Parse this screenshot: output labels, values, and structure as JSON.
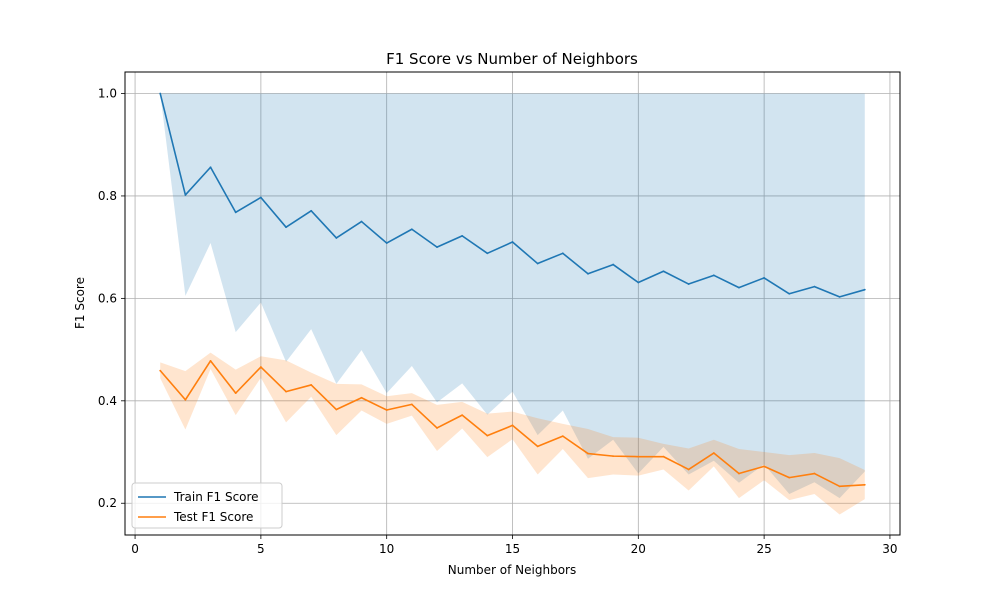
{
  "chart_data": {
    "type": "line",
    "title": "F1 Score vs Number of Neighbors",
    "xlabel": "Number of Neighbors",
    "ylabel": "F1 Score",
    "xlim": [
      -0.4,
      30.4
    ],
    "ylim": [
      0.138,
      1.042
    ],
    "xticks": [
      0,
      5,
      10,
      15,
      20,
      25,
      30
    ],
    "yticks": [
      0.2,
      0.4,
      0.6,
      0.8,
      1.0
    ],
    "grid": true,
    "legend_position": "lower-left",
    "x": [
      1,
      2,
      3,
      4,
      5,
      6,
      7,
      8,
      9,
      10,
      11,
      12,
      13,
      14,
      15,
      16,
      17,
      18,
      19,
      20,
      21,
      22,
      23,
      24,
      25,
      26,
      27,
      28,
      29
    ],
    "series": [
      {
        "name": "Train F1 Score",
        "color": "#1f77b4",
        "values": [
          1.0,
          0.802,
          0.856,
          0.768,
          0.797,
          0.739,
          0.771,
          0.718,
          0.75,
          0.708,
          0.735,
          0.7,
          0.722,
          0.688,
          0.71,
          0.668,
          0.688,
          0.648,
          0.666,
          0.631,
          0.653,
          0.628,
          0.645,
          0.621,
          0.64,
          0.609,
          0.623,
          0.603,
          0.617
        ],
        "band_lower": [
          1.0,
          0.605,
          0.708,
          0.534,
          0.592,
          0.476,
          0.54,
          0.433,
          0.499,
          0.415,
          0.468,
          0.397,
          0.434,
          0.373,
          0.418,
          0.333,
          0.381,
          0.287,
          0.324,
          0.258,
          0.31,
          0.256,
          0.283,
          0.24,
          0.276,
          0.218,
          0.241,
          0.21,
          0.262
        ],
        "band_upper": [
          1.0,
          1.0,
          1.0,
          1.0,
          1.0,
          1.0,
          1.0,
          1.0,
          1.0,
          1.0,
          1.0,
          1.0,
          1.0,
          1.0,
          1.0,
          1.0,
          1.0,
          1.0,
          1.0,
          1.0,
          1.0,
          1.0,
          1.0,
          1.0,
          1.0,
          1.0,
          1.0,
          1.0,
          1.0
        ]
      },
      {
        "name": "Test F1 Score",
        "color": "#ff7f0e",
        "values": [
          0.459,
          0.402,
          0.478,
          0.415,
          0.466,
          0.418,
          0.431,
          0.383,
          0.406,
          0.382,
          0.393,
          0.347,
          0.372,
          0.332,
          0.352,
          0.311,
          0.331,
          0.297,
          0.292,
          0.291,
          0.291,
          0.266,
          0.298,
          0.258,
          0.272,
          0.25,
          0.258,
          0.233,
          0.236
        ],
        "band_lower": [
          0.444,
          0.344,
          0.462,
          0.372,
          0.445,
          0.358,
          0.408,
          0.333,
          0.381,
          0.355,
          0.371,
          0.302,
          0.346,
          0.29,
          0.325,
          0.256,
          0.306,
          0.249,
          0.256,
          0.254,
          0.266,
          0.225,
          0.272,
          0.21,
          0.245,
          0.206,
          0.218,
          0.178,
          0.208
        ],
        "band_upper": [
          0.475,
          0.458,
          0.494,
          0.461,
          0.487,
          0.479,
          0.455,
          0.433,
          0.432,
          0.409,
          0.415,
          0.392,
          0.398,
          0.375,
          0.379,
          0.366,
          0.355,
          0.345,
          0.329,
          0.328,
          0.316,
          0.307,
          0.324,
          0.306,
          0.3,
          0.294,
          0.298,
          0.288,
          0.265
        ]
      }
    ]
  }
}
